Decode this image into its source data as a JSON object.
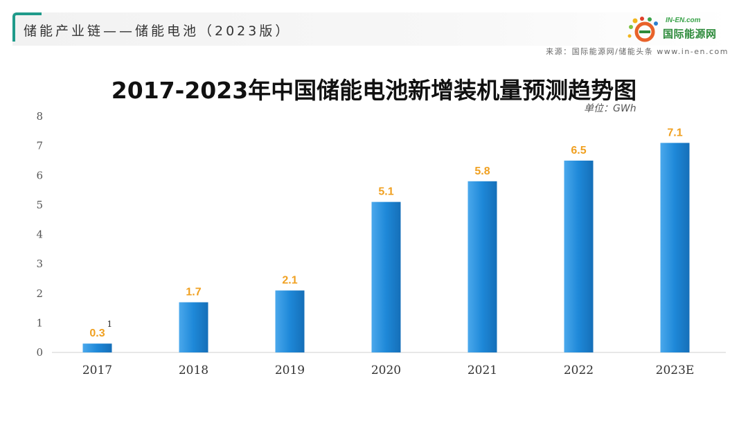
{
  "header": {
    "title": "储能产业链——储能电池（2023版）",
    "source": "来源：国际能源网/储能头条 www.in-en.com"
  },
  "logo": {
    "top_text": "IN-EN.com",
    "main_text": "国际能源网"
  },
  "colors": {
    "bar": "#1e88d8",
    "value_label": "#f0a020",
    "accent": "#1f9a8a"
  },
  "chart_data": {
    "type": "bar",
    "title": "2017-2023年中国储能电池新增装机量预测趋势图",
    "unit": "单位：GWh",
    "categories": [
      "2017",
      "2018",
      "2019",
      "2020",
      "2021",
      "2022",
      "2023E"
    ],
    "values": [
      0.3,
      1.7,
      2.1,
      5.1,
      5.8,
      6.5,
      7.1
    ],
    "value_labels": [
      "0.3",
      "1.7",
      "2.1",
      "5.1",
      "5.8",
      "6.5",
      "7.1"
    ],
    "y_ticks": [
      "0",
      "1",
      "2",
      "3",
      "4",
      "5",
      "6",
      "7",
      "8"
    ],
    "ylim": [
      0,
      8
    ],
    "annotations": [
      "1"
    ],
    "grid": false
  }
}
